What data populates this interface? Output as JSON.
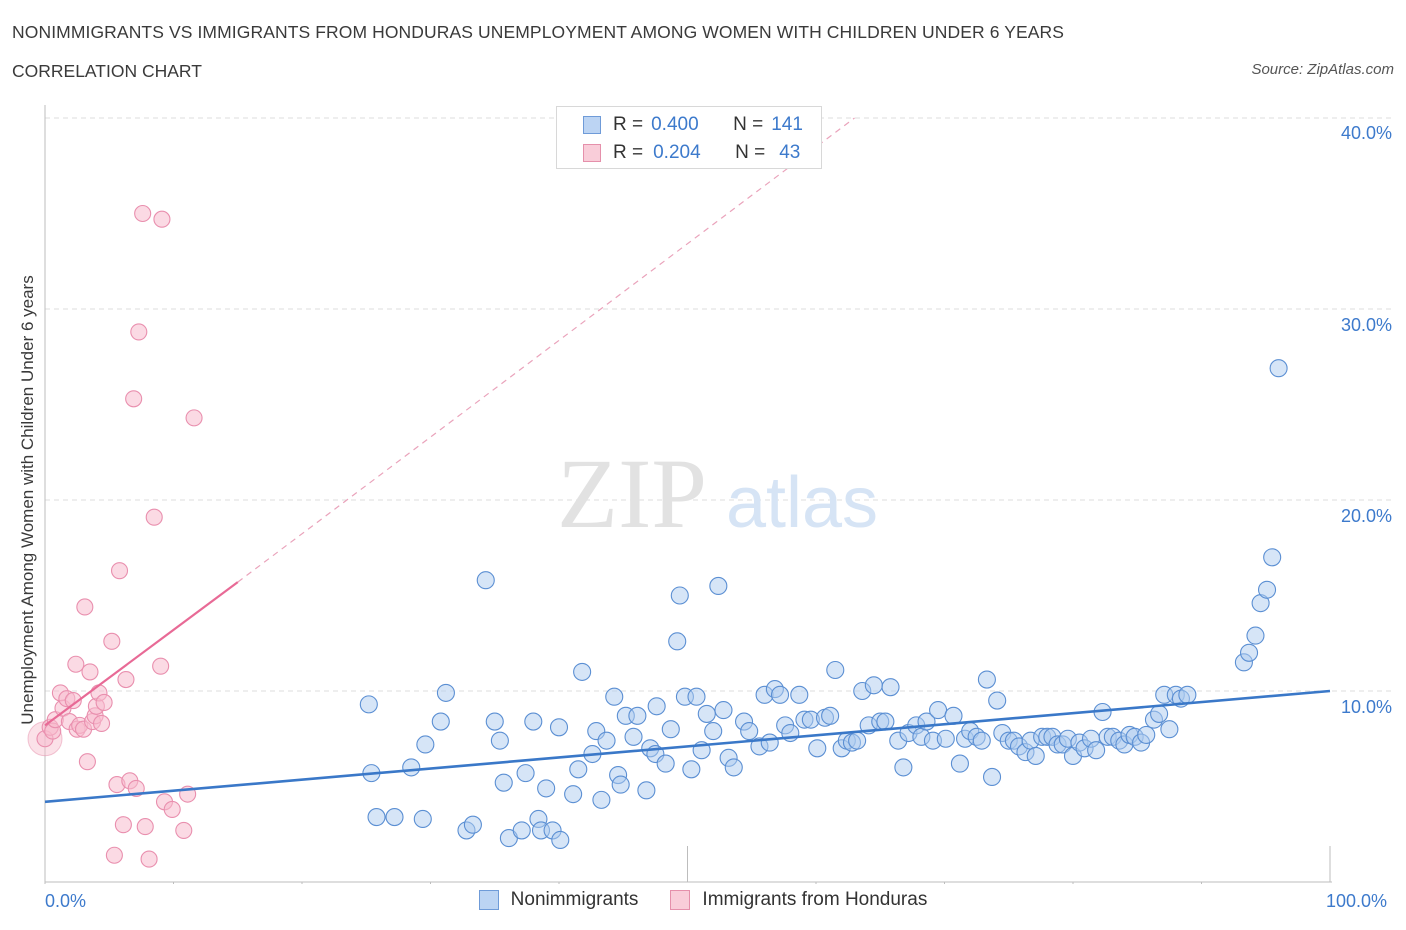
{
  "header": {
    "title": "NONIMMIGRANTS VS IMMIGRANTS FROM HONDURAS UNEMPLOYMENT AMONG WOMEN WITH CHILDREN UNDER 6 YEARS",
    "subtitle": "CORRELATION CHART",
    "source": "Source: ZipAtlas.com"
  },
  "watermark": {
    "zip": "ZIP",
    "atlas": "atlas"
  },
  "legend": {
    "rows": [
      {
        "r_label": "R =",
        "r_value": "0.400",
        "n_label": "N =",
        "n_value": "141"
      },
      {
        "r_label": "R =",
        "r_value": "0.204",
        "n_label": "N =",
        "n_value": "43"
      }
    ]
  },
  "colors": {
    "blue": "#3d7acc",
    "blue_fill": "#aecbf0",
    "pink": "#e86a96",
    "pink_fill": "#f7bccd",
    "grid": "#dcdcdc"
  },
  "chart_data": {
    "type": "scatter",
    "title": "NONIMMIGRANTS VS IMMIGRANTS FROM HONDURAS UNEMPLOYMENT AMONG WOMEN WITH CHILDREN UNDER 6 YEARS",
    "xlabel": "",
    "ylabel": "Unemployment Among Women with Children Under 6 years",
    "xlim": [
      0,
      100
    ],
    "ylim": [
      0,
      40
    ],
    "x_tick_labels": [
      "0.0%",
      "100.0%"
    ],
    "y_tick_labels": [
      "10.0%",
      "20.0%",
      "30.0%",
      "40.0%"
    ],
    "y_ticks": [
      10,
      20,
      30,
      40
    ],
    "grid": true,
    "legend_position": "bottom",
    "series": [
      {
        "name": "Nonimmigrants",
        "color": "#3d7acc",
        "trend": {
          "x": [
            0,
            100
          ],
          "y": [
            4.2,
            10.0
          ]
        },
        "points": [
          [
            25.2,
            9.3
          ],
          [
            25.4,
            5.7
          ],
          [
            25.8,
            3.4
          ],
          [
            27.2,
            3.4
          ],
          [
            28.5,
            6.0
          ],
          [
            29.4,
            3.3
          ],
          [
            29.6,
            7.2
          ],
          [
            30.8,
            8.4
          ],
          [
            31.2,
            9.9
          ],
          [
            32.8,
            2.7
          ],
          [
            33.3,
            3.0
          ],
          [
            34.3,
            15.8
          ],
          [
            35.0,
            8.4
          ],
          [
            35.4,
            7.4
          ],
          [
            35.7,
            5.2
          ],
          [
            36.1,
            2.3
          ],
          [
            37.1,
            2.7
          ],
          [
            37.4,
            5.7
          ],
          [
            38.0,
            8.4
          ],
          [
            38.4,
            3.3
          ],
          [
            38.6,
            2.7
          ],
          [
            39.0,
            4.9
          ],
          [
            39.5,
            2.7
          ],
          [
            40.0,
            8.1
          ],
          [
            40.1,
            2.2
          ],
          [
            41.1,
            4.6
          ],
          [
            41.5,
            5.9
          ],
          [
            41.8,
            11.0
          ],
          [
            42.6,
            6.7
          ],
          [
            42.9,
            7.9
          ],
          [
            43.3,
            4.3
          ],
          [
            43.7,
            7.4
          ],
          [
            44.3,
            9.7
          ],
          [
            44.6,
            5.6
          ],
          [
            44.8,
            5.1
          ],
          [
            45.2,
            8.7
          ],
          [
            45.8,
            7.6
          ],
          [
            46.1,
            8.7
          ],
          [
            46.8,
            4.8
          ],
          [
            47.1,
            7.0
          ],
          [
            47.5,
            6.7
          ],
          [
            47.6,
            9.2
          ],
          [
            48.3,
            6.2
          ],
          [
            48.7,
            8.0
          ],
          [
            49.2,
            12.6
          ],
          [
            49.4,
            15.0
          ],
          [
            49.8,
            9.7
          ],
          [
            50.3,
            5.9
          ],
          [
            50.7,
            9.7
          ],
          [
            51.1,
            6.9
          ],
          [
            51.5,
            8.8
          ],
          [
            52.0,
            7.9
          ],
          [
            52.4,
            15.5
          ],
          [
            52.8,
            9.0
          ],
          [
            53.2,
            6.5
          ],
          [
            53.6,
            6.0
          ],
          [
            54.4,
            8.4
          ],
          [
            54.8,
            7.9
          ],
          [
            55.6,
            7.1
          ],
          [
            56.0,
            9.8
          ],
          [
            56.4,
            7.3
          ],
          [
            56.8,
            10.1
          ],
          [
            57.2,
            9.8
          ],
          [
            57.6,
            8.2
          ],
          [
            58.0,
            7.8
          ],
          [
            58.7,
            9.8
          ],
          [
            59.1,
            8.5
          ],
          [
            59.6,
            8.5
          ],
          [
            60.1,
            7.0
          ],
          [
            60.7,
            8.6
          ],
          [
            61.1,
            8.7
          ],
          [
            61.5,
            11.1
          ],
          [
            62.0,
            7.0
          ],
          [
            62.4,
            7.4
          ],
          [
            62.8,
            7.3
          ],
          [
            63.2,
            7.4
          ],
          [
            63.6,
            10.0
          ],
          [
            64.1,
            8.2
          ],
          [
            64.5,
            10.3
          ],
          [
            65.0,
            8.4
          ],
          [
            65.4,
            8.4
          ],
          [
            65.8,
            10.2
          ],
          [
            66.4,
            7.4
          ],
          [
            66.8,
            6.0
          ],
          [
            67.2,
            7.8
          ],
          [
            67.8,
            8.2
          ],
          [
            68.2,
            7.6
          ],
          [
            68.6,
            8.4
          ],
          [
            69.1,
            7.4
          ],
          [
            69.5,
            9.0
          ],
          [
            70.1,
            7.5
          ],
          [
            70.7,
            8.7
          ],
          [
            71.2,
            6.2
          ],
          [
            71.6,
            7.5
          ],
          [
            72.0,
            7.9
          ],
          [
            72.5,
            7.6
          ],
          [
            72.9,
            7.4
          ],
          [
            73.3,
            10.6
          ],
          [
            73.7,
            5.5
          ],
          [
            74.1,
            9.5
          ],
          [
            74.5,
            7.8
          ],
          [
            75.0,
            7.4
          ],
          [
            75.4,
            7.4
          ],
          [
            75.8,
            7.1
          ],
          [
            76.3,
            6.8
          ],
          [
            76.7,
            7.4
          ],
          [
            77.1,
            6.6
          ],
          [
            77.6,
            7.6
          ],
          [
            78.0,
            7.6
          ],
          [
            78.4,
            7.6
          ],
          [
            78.8,
            7.2
          ],
          [
            79.2,
            7.2
          ],
          [
            79.6,
            7.5
          ],
          [
            80.0,
            6.6
          ],
          [
            80.5,
            7.3
          ],
          [
            80.9,
            7.0
          ],
          [
            81.4,
            7.5
          ],
          [
            81.8,
            6.9
          ],
          [
            82.3,
            8.9
          ],
          [
            82.7,
            7.6
          ],
          [
            83.1,
            7.6
          ],
          [
            83.6,
            7.4
          ],
          [
            84.0,
            7.2
          ],
          [
            84.4,
            7.7
          ],
          [
            84.8,
            7.6
          ],
          [
            85.3,
            7.3
          ],
          [
            85.7,
            7.7
          ],
          [
            86.3,
            8.5
          ],
          [
            86.7,
            8.8
          ],
          [
            87.1,
            9.8
          ],
          [
            87.5,
            8.0
          ],
          [
            88.0,
            9.8
          ],
          [
            88.4,
            9.6
          ],
          [
            88.9,
            9.8
          ],
          [
            93.3,
            11.5
          ],
          [
            93.7,
            12.0
          ],
          [
            94.2,
            12.9
          ],
          [
            94.6,
            14.6
          ],
          [
            95.1,
            15.3
          ],
          [
            95.5,
            17.0
          ],
          [
            96.0,
            26.9
          ]
        ]
      },
      {
        "name": "Immigrants from Honduras",
        "color": "#e86a96",
        "trend": {
          "x": [
            0,
            15
          ],
          "y": [
            8.2,
            15.7
          ]
        },
        "trend_extension": {
          "x": [
            15,
            63
          ],
          "y": [
            15.7,
            40.0
          ]
        },
        "points": [
          [
            0.0,
            7.5
          ],
          [
            0.4,
            8.1
          ],
          [
            0.6,
            7.9
          ],
          [
            0.8,
            8.5
          ],
          [
            1.2,
            9.9
          ],
          [
            1.4,
            9.1
          ],
          [
            1.7,
            9.6
          ],
          [
            1.9,
            8.4
          ],
          [
            2.2,
            9.5
          ],
          [
            2.4,
            11.4
          ],
          [
            2.5,
            8.0
          ],
          [
            2.7,
            8.2
          ],
          [
            3.0,
            8.0
          ],
          [
            3.1,
            14.4
          ],
          [
            3.3,
            6.3
          ],
          [
            3.5,
            11.0
          ],
          [
            3.7,
            8.4
          ],
          [
            3.9,
            8.7
          ],
          [
            4.0,
            9.2
          ],
          [
            4.2,
            9.9
          ],
          [
            4.4,
            8.3
          ],
          [
            4.6,
            9.4
          ],
          [
            5.2,
            12.6
          ],
          [
            5.4,
            1.4
          ],
          [
            5.6,
            5.1
          ],
          [
            5.8,
            16.3
          ],
          [
            6.1,
            3.0
          ],
          [
            6.3,
            10.6
          ],
          [
            6.6,
            5.3
          ],
          [
            6.9,
            25.3
          ],
          [
            7.1,
            4.9
          ],
          [
            7.3,
            28.8
          ],
          [
            7.6,
            35.0
          ],
          [
            7.8,
            2.9
          ],
          [
            8.1,
            1.2
          ],
          [
            8.5,
            19.1
          ],
          [
            9.0,
            11.3
          ],
          [
            9.1,
            34.7
          ],
          [
            9.3,
            4.2
          ],
          [
            9.9,
            3.8
          ],
          [
            10.8,
            2.7
          ],
          [
            11.1,
            4.6
          ],
          [
            11.6,
            24.3
          ]
        ]
      }
    ]
  },
  "bottom_legend": {
    "items": [
      "Nonimmigrants",
      "Immigrants from Honduras"
    ]
  }
}
